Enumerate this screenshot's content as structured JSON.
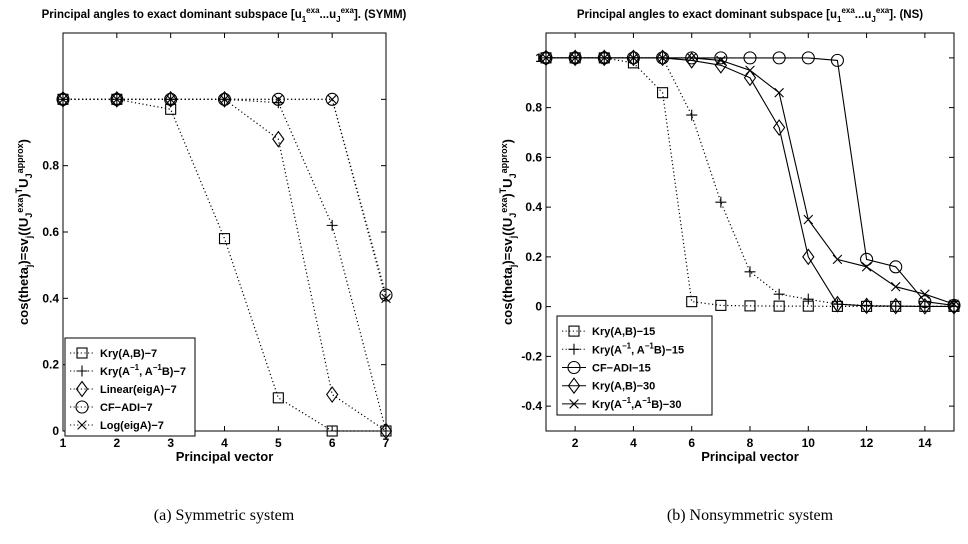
{
  "chart_data": [
    {
      "type": "line",
      "title_parts": [
        "Principal angles to exact dominant subspace [u",
        "1",
        "exa",
        "...u",
        "J",
        "exa",
        "]. (SYMM)"
      ],
      "xlabel": "Principal vector",
      "ylabel_parts": [
        "cos(theta",
        "j",
        ")=sv",
        "j",
        "((U",
        "J",
        "exa",
        ")",
        "T",
        "U",
        "J",
        "approx",
        ")"
      ],
      "xlim": [
        1,
        7
      ],
      "ylim": [
        0,
        1.2
      ],
      "xticks": [
        1,
        2,
        3,
        4,
        5,
        6,
        7
      ],
      "yticks": [
        0.2,
        0.4,
        0.6,
        0.8,
        1
      ],
      "ytick_labels": [
        {
          "v": 0,
          "t": "0"
        },
        {
          "v": 0.2,
          "t": "0.2"
        },
        {
          "v": 0.4,
          "t": "0.4"
        },
        {
          "v": 0.6,
          "t": "0.6"
        },
        {
          "v": 0.8,
          "t": "0.8"
        }
      ],
      "caption": "(a) Symmetric system",
      "legend_position": "bottom-left",
      "series": [
        {
          "name": "Kry(A,B)−7",
          "legend_parts": [
            "Kry(A,B)−7"
          ],
          "marker": "square",
          "style": "dotted",
          "x": [
            1,
            2,
            3,
            4,
            5,
            6,
            7
          ],
          "y": [
            1,
            1,
            0.97,
            0.58,
            0.1,
            0.0,
            0.0
          ]
        },
        {
          "name": "Kry(A−1, A−1B)−7",
          "legend_parts": [
            "Kry(A",
            "−1",
            ", A",
            "−1",
            "B)−7"
          ],
          "marker": "plus",
          "style": "dotted",
          "x": [
            1,
            2,
            3,
            4,
            5,
            6,
            7
          ],
          "y": [
            1,
            1,
            1,
            1,
            0.99,
            0.62,
            0.0
          ]
        },
        {
          "name": "Linear(eigA)−7",
          "legend_parts": [
            "Linear(eigA)−7"
          ],
          "marker": "diamond",
          "style": "dotted",
          "x": [
            1,
            2,
            3,
            4,
            5,
            6,
            7
          ],
          "y": [
            1,
            1,
            1,
            1,
            0.88,
            0.11,
            0.0
          ]
        },
        {
          "name": "CF−ADI−7",
          "legend_parts": [
            "CF−ADI−7"
          ],
          "marker": "circle",
          "style": "dotted",
          "x": [
            1,
            2,
            3,
            4,
            5,
            6,
            7
          ],
          "y": [
            1,
            1,
            1,
            1,
            1,
            1,
            0.41
          ]
        },
        {
          "name": "Log(eigA)−7",
          "legend_parts": [
            "Log(eigA)−7"
          ],
          "marker": "x",
          "style": "dotted",
          "x": [
            1,
            2,
            3,
            4,
            5,
            6,
            7
          ],
          "y": [
            1,
            1,
            1,
            1,
            1,
            1,
            0.4
          ]
        }
      ]
    },
    {
      "type": "line",
      "title_parts": [
        "Principal angles to exact dominant subspace [u",
        "1",
        "exa",
        "...u",
        "J",
        "exa",
        "]. (NS)"
      ],
      "xlabel": "Principal vector",
      "ylabel_parts": [
        "cos(theta",
        "j",
        ")=sv",
        "j",
        "((U",
        "J",
        "exa",
        ")",
        "T",
        "U",
        "J",
        "approx",
        ")"
      ],
      "xlim": [
        1,
        15
      ],
      "ylim": [
        -0.5,
        1.1
      ],
      "xticks": [
        2,
        4,
        6,
        8,
        10,
        12,
        14
      ],
      "yticks": [
        -0.4,
        -0.2,
        0,
        0.2,
        0.4,
        0.6,
        0.8,
        1
      ],
      "ytick_labels": [
        {
          "v": -0.4,
          "t": "-0.4"
        },
        {
          "v": -0.2,
          "t": "-0.2"
        },
        {
          "v": 0,
          "t": "0"
        },
        {
          "v": 0.2,
          "t": "0.2"
        },
        {
          "v": 0.4,
          "t": "0.4"
        },
        {
          "v": 0.6,
          "t": "0.6"
        },
        {
          "v": 0.8,
          "t": "0.8"
        },
        {
          "v": 1,
          "t": "1"
        }
      ],
      "caption": "(b) Nonsymmetric system",
      "legend_position": "bottom-left",
      "series": [
        {
          "name": "Kry(A,B)−15",
          "legend_parts": [
            "Kry(A,B)−15"
          ],
          "marker": "square",
          "style": "dotted",
          "x": [
            1,
            2,
            3,
            4,
            5,
            6,
            7,
            8,
            9,
            10,
            11,
            12,
            13,
            14,
            15
          ],
          "y": [
            1,
            1,
            1,
            0.98,
            0.86,
            0.02,
            0.005,
            0.003,
            0.002,
            0.002,
            0.001,
            0.001,
            0.001,
            0.001,
            0.001
          ]
        },
        {
          "name": "Kry(A−1, A−1B)−15",
          "legend_parts": [
            "Kry(A",
            "−1",
            ", A",
            "−1",
            "B)−15"
          ],
          "marker": "plus",
          "style": "dotted",
          "x": [
            1,
            2,
            3,
            4,
            5,
            6,
            7,
            8,
            9,
            10,
            11,
            12,
            13,
            14,
            15
          ],
          "y": [
            1,
            1,
            1,
            1,
            1,
            0.77,
            0.42,
            0.14,
            0.05,
            0.03,
            0.01,
            0.005,
            0.002,
            0.001,
            0.001
          ]
        },
        {
          "name": "CF−ADI−15",
          "legend_parts": [
            "CF−ADI−15"
          ],
          "marker": "circle",
          "style": "solid",
          "x": [
            1,
            2,
            3,
            4,
            5,
            6,
            7,
            8,
            9,
            10,
            11,
            12,
            13,
            14,
            15
          ],
          "y": [
            1,
            1,
            1,
            1,
            1,
            1,
            1,
            1,
            1,
            1,
            0.99,
            0.19,
            0.16,
            0.02,
            0.005
          ]
        },
        {
          "name": "Kry(A,B)−30",
          "legend_parts": [
            "Kry(A,B)−30"
          ],
          "marker": "diamond",
          "style": "solid",
          "x": [
            1,
            2,
            3,
            4,
            5,
            6,
            7,
            8,
            9,
            10,
            11,
            12,
            13,
            14,
            15
          ],
          "y": [
            1,
            1,
            1,
            1,
            1,
            0.99,
            0.97,
            0.92,
            0.72,
            0.2,
            0.01,
            0.003,
            0.002,
            0.001,
            0.001
          ]
        },
        {
          "name": "Kry(A−1,A−1B)−30",
          "legend_parts": [
            "Kry(A",
            "−1",
            ",A",
            "−1",
            "B)−30"
          ],
          "marker": "x",
          "style": "solid",
          "x": [
            1,
            2,
            3,
            4,
            5,
            6,
            7,
            8,
            9,
            10,
            11,
            12,
            13,
            14,
            15
          ],
          "y": [
            1,
            1,
            1,
            1,
            1,
            1,
            0.99,
            0.95,
            0.86,
            0.35,
            0.19,
            0.16,
            0.08,
            0.05,
            0.01
          ]
        }
      ]
    }
  ]
}
